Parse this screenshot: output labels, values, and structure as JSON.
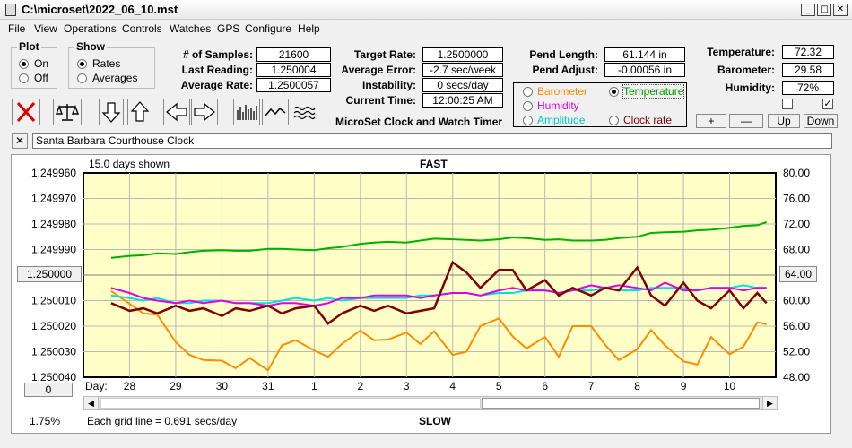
{
  "window": {
    "title": "C:\\microset\\2022_06_10.mst"
  },
  "menu": [
    "File",
    "View",
    "Operations",
    "Controls",
    "Watches",
    "GPS",
    "Configure",
    "Help"
  ],
  "plot_group": {
    "title": "Plot",
    "on": "On",
    "off": "Off",
    "selected": "On"
  },
  "show_group": {
    "title": "Show",
    "rates": "Rates",
    "averages": "Averages",
    "selected": "Rates"
  },
  "stats": {
    "samples_label": "# of Samples:",
    "samples": "21600",
    "last_reading_label": "Last Reading:",
    "last_reading": "1.250004",
    "average_rate_label": "Average Rate:",
    "average_rate": "1.2500057"
  },
  "targets": {
    "target_rate_label": "Target Rate:",
    "target_rate": "1.2500000",
    "average_error_label": "Average Error:",
    "average_error": "-2.7 sec/week",
    "instability_label": "Instability:",
    "instability": "0 secs/day",
    "current_time_label": "Current Time:",
    "current_time": "12:00:25 AM"
  },
  "app_caption": "MicroSet Clock and Watch Timer",
  "pendulum": {
    "length_label": "Pend Length:",
    "length": "61.144 in",
    "adjust_label": "Pend Adjust:",
    "adjust": "-0.00056 in"
  },
  "sensor_select": {
    "barometer": "Barometer",
    "temperature": "Temperature",
    "humidity": "Humidity",
    "amplitude": "Amplitude",
    "clock_rate": "Clock rate",
    "selected": "Temperature"
  },
  "environment": {
    "temperature_label": "Temperature:",
    "temperature": "72.32",
    "barometer_label": "Barometer:",
    "barometer": "29.58",
    "humidity_label": "Humidity:",
    "humidity": "72%",
    "checkbox_left": false,
    "checkbox_right": true
  },
  "adjust_buttons": {
    "plus": "+",
    "minus": "—",
    "up": "Up",
    "down": "Down"
  },
  "notes": {
    "close": "✕",
    "text": "Santa Barbara Courthouse Clock"
  },
  "chart_labels": {
    "days_shown": "15.0 days shown",
    "fast": "FAST",
    "slow": "SLOW",
    "day_label": "Day:",
    "grid_line_note": "Each grid line = 0.691 secs/day",
    "percent": "1.75%",
    "left_button": "1.250000",
    "right_button": "64.00",
    "zero_button": "0"
  },
  "colors": {
    "plot_bg": "#ffffc8",
    "rate": "#800000",
    "temperature": "#00b000",
    "barometer": "#ff8c00",
    "humidity": "#e000e0",
    "amplitude": "#00e0e0",
    "reference": "#808080",
    "red_x": "#e00000"
  },
  "chart_data": {
    "type": "line",
    "title": "",
    "x_tick_labels": [
      "28",
      "29",
      "30",
      "31",
      "1",
      "2",
      "3",
      "4",
      "5",
      "6",
      "7",
      "8",
      "9",
      "10"
    ],
    "y_left_ticks": [
      "1.249960",
      "1.249970",
      "1.249980",
      "1.249990",
      "1.250000",
      "1.250010",
      "1.250020",
      "1.250030",
      "1.250040"
    ],
    "y_right_ticks": [
      "80.00",
      "76.00",
      "72.00",
      "68.00",
      "64.00",
      "60.00",
      "56.00",
      "52.00",
      "48.00"
    ],
    "ylim_left": [
      1.24996,
      1.25004
    ],
    "ylim_right": [
      48,
      80
    ],
    "grid": true,
    "x": [
      27.6,
      28.0,
      28.3,
      28.6,
      29.0,
      29.3,
      29.6,
      30.0,
      30.3,
      30.6,
      31.0,
      31.3,
      31.6,
      32.0,
      32.3,
      32.6,
      33.0,
      33.3,
      33.6,
      34.0,
      34.3,
      34.6,
      35.0,
      35.3,
      35.6,
      36.0,
      36.3,
      36.6,
      37.0,
      37.3,
      37.6,
      38.0,
      38.3,
      38.6,
      39.0,
      39.3,
      39.6,
      40.0,
      40.3,
      40.6,
      41.0,
      41.3,
      41.6,
      41.8
    ],
    "series": [
      {
        "color": "#800000",
        "axis": "left",
        "values": [
          1.250011,
          1.250014,
          1.250013,
          1.250015,
          1.250012,
          1.250014,
          1.250013,
          1.250016,
          1.250013,
          1.250014,
          1.250012,
          1.250015,
          1.250013,
          1.250012,
          1.250019,
          1.250015,
          1.250012,
          1.250014,
          1.250012,
          1.250015,
          1.250014,
          1.250013,
          1.249995,
          1.249999,
          1.250005,
          1.249998,
          1.249998,
          1.250006,
          1.250002,
          1.250008,
          1.250005,
          1.250008,
          1.250005,
          1.250006,
          1.249997,
          1.250008,
          1.250012,
          1.250003,
          1.25001,
          1.250013,
          1.250006,
          1.250013,
          1.250007,
          1.250011
        ]
      },
      {
        "color": "#00b000",
        "axis": "right",
        "values": [
          66.7,
          67.0,
          67.1,
          67.4,
          67.3,
          67.6,
          67.8,
          67.9,
          67.8,
          67.8,
          68.1,
          68.1,
          68.0,
          67.9,
          68.2,
          68.4,
          68.9,
          69.1,
          69.2,
          69.1,
          69.4,
          69.7,
          69.6,
          69.5,
          69.4,
          69.6,
          69.9,
          69.8,
          69.5,
          69.6,
          69.4,
          69.4,
          69.5,
          69.8,
          70.0,
          70.6,
          70.7,
          70.8,
          71.0,
          71.1,
          71.4,
          71.7,
          71.8,
          72.3
        ]
      },
      {
        "color": "#ff8c00",
        "axis": "right",
        "values": [
          61.5,
          59.5,
          58.0,
          57.8,
          53.5,
          51.5,
          50.7,
          50.6,
          49.4,
          51.0,
          49.1,
          53.0,
          53.8,
          52.2,
          51.2,
          53.2,
          55.3,
          53.8,
          53.9,
          55.0,
          53.2,
          55.2,
          51.5,
          52.0,
          56.0,
          57.2,
          54.4,
          52.5,
          54.3,
          51.2,
          56.0,
          56.0,
          53.1,
          50.7,
          52.4,
          55.4,
          53.0,
          50.5,
          50.0,
          54.3,
          51.6,
          52.8,
          56.6,
          56.3
        ]
      },
      {
        "color": "#e000e0",
        "axis": "left",
        "values": [
          1.250005,
          1.250007,
          1.250009,
          1.25001,
          1.250011,
          1.25001,
          1.250011,
          1.25001,
          1.250011,
          1.250011,
          1.250012,
          1.250011,
          1.250011,
          1.250012,
          1.250011,
          1.250009,
          1.250009,
          1.250008,
          1.250008,
          1.250008,
          1.250009,
          1.250008,
          1.250007,
          1.250007,
          1.250008,
          1.250006,
          1.250005,
          1.250006,
          1.250006,
          1.250007,
          1.250006,
          1.250004,
          1.250005,
          1.250004,
          1.250005,
          1.250006,
          1.250003,
          1.250006,
          1.250006,
          1.250005,
          1.250005,
          1.250006,
          1.250005,
          1.250005
        ]
      },
      {
        "color": "#00e0e0",
        "axis": "left",
        "values": [
          1.250008,
          1.250009,
          1.25001,
          1.250009,
          1.250011,
          1.250011,
          1.25001,
          1.25001,
          1.250011,
          1.250011,
          1.250011,
          1.25001,
          1.250009,
          1.25001,
          1.250009,
          1.25001,
          1.250009,
          1.250009,
          1.250009,
          1.250009,
          1.250008,
          1.250008,
          1.250007,
          1.250007,
          1.250008,
          1.250007,
          1.250007,
          1.250006,
          1.250006,
          1.250007,
          1.250006,
          1.250006,
          1.250005,
          1.250006,
          1.250006,
          1.250005,
          1.250005,
          1.250005,
          1.250006,
          1.250005,
          1.250005,
          1.250004,
          1.250005,
          1.250005
        ]
      }
    ]
  }
}
